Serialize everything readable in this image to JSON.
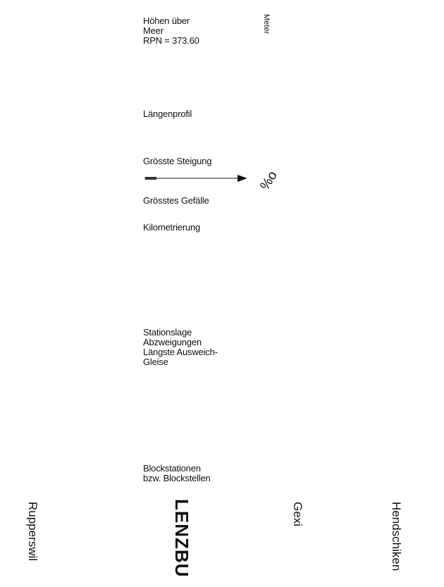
{
  "legend": {
    "heights_label": "Höhen über\nMeer\nRPN = 373.60",
    "unit_label": "Meter",
    "profile_label": "Längenprofil",
    "max_incline_label": "Grösste Steigung",
    "permille_symbol": "%o",
    "max_decline_label": "Grösstes Gefälle",
    "kilometer_label": "Kilometrierung",
    "station_info_label": "Stationslage\nAbzweigungen\nLängste Ausweich-\nGleise",
    "block_label": "Blockstationen\nbzw. Blockstellen"
  },
  "stations": {
    "rupperswil": "Rupperswil",
    "lenzburg": "LENZBU",
    "gexi": "Gexi",
    "hendschiken": "Hendschiken"
  }
}
